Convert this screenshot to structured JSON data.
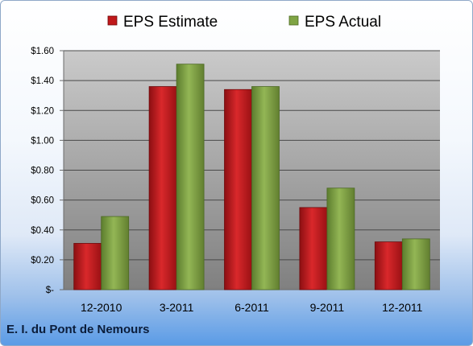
{
  "company_name": "E. I. du Pont de Nemours",
  "colors": {
    "estimate": "#c0181b",
    "actual": "#7fa444"
  },
  "chart_data": {
    "type": "bar",
    "categories": [
      "12-2010",
      "3-2011",
      "6-2011",
      "9-2011",
      "12-2011"
    ],
    "series": [
      {
        "name": "EPS Estimate",
        "values": [
          0.31,
          1.36,
          1.34,
          0.55,
          0.32
        ]
      },
      {
        "name": "EPS Actual",
        "values": [
          0.49,
          1.51,
          1.36,
          0.68,
          0.34
        ]
      }
    ],
    "y_ticks": [
      "$-",
      "$0.20",
      "$0.40",
      "$0.60",
      "$0.80",
      "$1.00",
      "$1.20",
      "$1.40",
      "$1.60"
    ],
    "ylim": [
      0,
      1.6
    ],
    "grid": true,
    "legend_position": "top-center"
  }
}
